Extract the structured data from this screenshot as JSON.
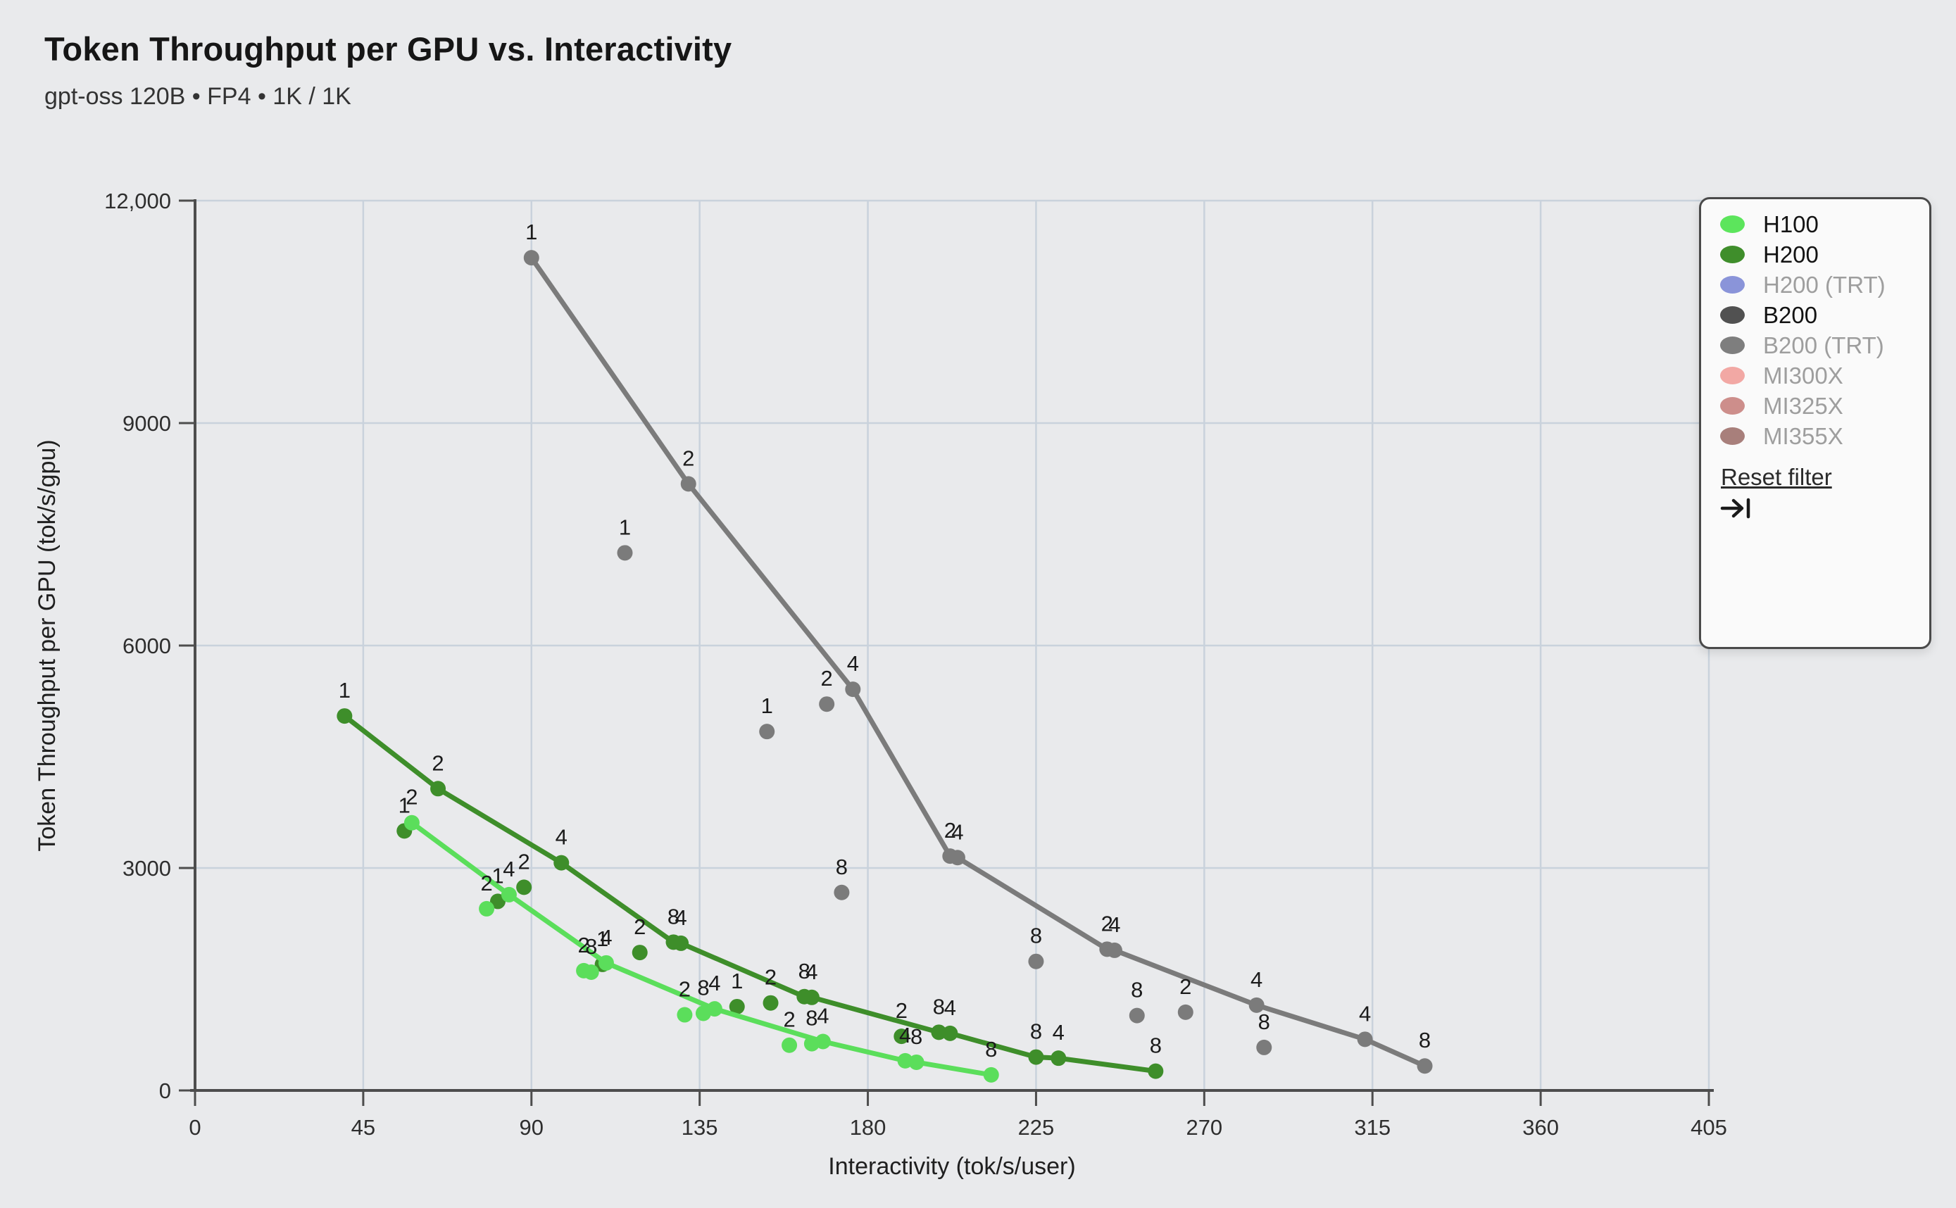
{
  "header": {
    "title": "Token Throughput per GPU vs. Interactivity",
    "subtitle": "gpt-oss 120B • FP4 • 1K / 1K"
  },
  "chart_data": {
    "type": "scatter",
    "title": "Token Throughput per GPU vs. Interactivity",
    "subtitle": "gpt-oss 120B • FP4 • 1K / 1K",
    "xlabel": "Interactivity (tok/s/user)",
    "ylabel": "Token Throughput per GPU (tok/s/gpu)",
    "xlim": [
      0,
      405
    ],
    "ylim": [
      0,
      12000
    ],
    "grid": true,
    "x_ticks": [
      {
        "v": 0,
        "label": "0"
      },
      {
        "v": 45,
        "label": "45"
      },
      {
        "v": 90,
        "label": "90"
      },
      {
        "v": 135,
        "label": "135"
      },
      {
        "v": 180,
        "label": "180"
      },
      {
        "v": 225,
        "label": "225"
      },
      {
        "v": 270,
        "label": "270"
      },
      {
        "v": 315,
        "label": "315"
      },
      {
        "v": 360,
        "label": "360"
      },
      {
        "v": 405,
        "label": "405"
      }
    ],
    "y_ticks": [
      {
        "v": 0,
        "label": "0"
      },
      {
        "v": 3000,
        "label": "3000"
      },
      {
        "v": 6000,
        "label": "6000"
      },
      {
        "v": 9000,
        "label": "9000"
      },
      {
        "v": 12000,
        "label": "12,000"
      }
    ],
    "point_label_meaning": "number of GPUs (1 / 2 / 4 / 8) annotated above each point",
    "series": [
      {
        "name": "B200",
        "color": "#7b7b7b",
        "line": [
          [
            90,
            11230,
            "1"
          ],
          [
            132,
            8180,
            "2"
          ],
          [
            176,
            5410,
            "4"
          ],
          [
            202,
            3160,
            "2"
          ],
          [
            204,
            3140,
            "4"
          ],
          [
            244,
            1905,
            "2"
          ],
          [
            246,
            1890,
            "4"
          ],
          [
            284,
            1150,
            "4"
          ],
          [
            313,
            690,
            "4"
          ],
          [
            329,
            330,
            "8"
          ]
        ],
        "scatter": [
          [
            115,
            7250,
            "1"
          ],
          [
            153,
            4840,
            "1"
          ],
          [
            169,
            5210,
            "2"
          ],
          [
            173,
            2670,
            "8"
          ],
          [
            225,
            1740,
            "8"
          ],
          [
            252,
            1010,
            "8"
          ],
          [
            265,
            1055,
            "2"
          ],
          [
            286,
            580,
            "8"
          ]
        ]
      },
      {
        "name": "H200",
        "color": "#3e8e2a",
        "line": [
          [
            40,
            5050,
            "1"
          ],
          [
            65,
            4070,
            "2"
          ],
          [
            98,
            3070,
            "4"
          ],
          [
            128,
            2000,
            "8"
          ],
          [
            130,
            1985,
            "4"
          ],
          [
            163,
            1265,
            "8"
          ],
          [
            165,
            1255,
            "4"
          ],
          [
            199,
            785,
            "8"
          ],
          [
            202,
            770,
            "4"
          ],
          [
            225,
            450,
            "8"
          ],
          [
            231,
            435,
            "4"
          ],
          [
            257,
            260,
            "8"
          ]
        ],
        "scatter": [
          [
            56,
            3500,
            "1"
          ],
          [
            81,
            2550,
            "1"
          ],
          [
            88,
            2740,
            "2"
          ],
          [
            109,
            1700,
            "1"
          ],
          [
            119,
            1860,
            "2"
          ],
          [
            145,
            1130,
            "1"
          ],
          [
            154,
            1180,
            "2"
          ],
          [
            189,
            730,
            "2"
          ]
        ]
      },
      {
        "name": "H100",
        "color": "#5bde5b",
        "line": [
          [
            58,
            3610,
            "2"
          ],
          [
            84,
            2640,
            "4"
          ],
          [
            110,
            1720,
            "4"
          ],
          [
            139,
            1100,
            "4"
          ],
          [
            168,
            660,
            "4"
          ],
          [
            190,
            400,
            "4"
          ],
          [
            193,
            380,
            "8"
          ],
          [
            213,
            210,
            "8"
          ]
        ],
        "scatter": [
          [
            78,
            2450,
            "2"
          ],
          [
            104,
            1615,
            "2"
          ],
          [
            106,
            1595,
            "8"
          ],
          [
            131,
            1020,
            "2"
          ],
          [
            136,
            1040,
            "8"
          ],
          [
            159,
            610,
            "2"
          ],
          [
            165,
            630,
            "8"
          ]
        ]
      }
    ]
  },
  "legend": {
    "items": [
      {
        "label": "H100",
        "color": "#5ce55c",
        "active": true
      },
      {
        "label": "H200",
        "color": "#3f8e2b",
        "active": true
      },
      {
        "label": "H200 (TRT)",
        "color": "#8a94d9",
        "active": false
      },
      {
        "label": "B200",
        "color": "#515151",
        "active": true
      },
      {
        "label": "B200 (TRT)",
        "color": "#7e7e7e",
        "active": false
      },
      {
        "label": "MI300X",
        "color": "#f2a8a4",
        "active": false
      },
      {
        "label": "MI325X",
        "color": "#cd8e8b",
        "active": false
      },
      {
        "label": "MI355X",
        "color": "#a87f7b",
        "active": false
      }
    ],
    "reset_label": "Reset filter"
  },
  "colors": {
    "background": "#e9eaec",
    "gridline": "#c9d2dc",
    "axis": "#4d4d4d",
    "point_label": "#1b1b1b"
  }
}
